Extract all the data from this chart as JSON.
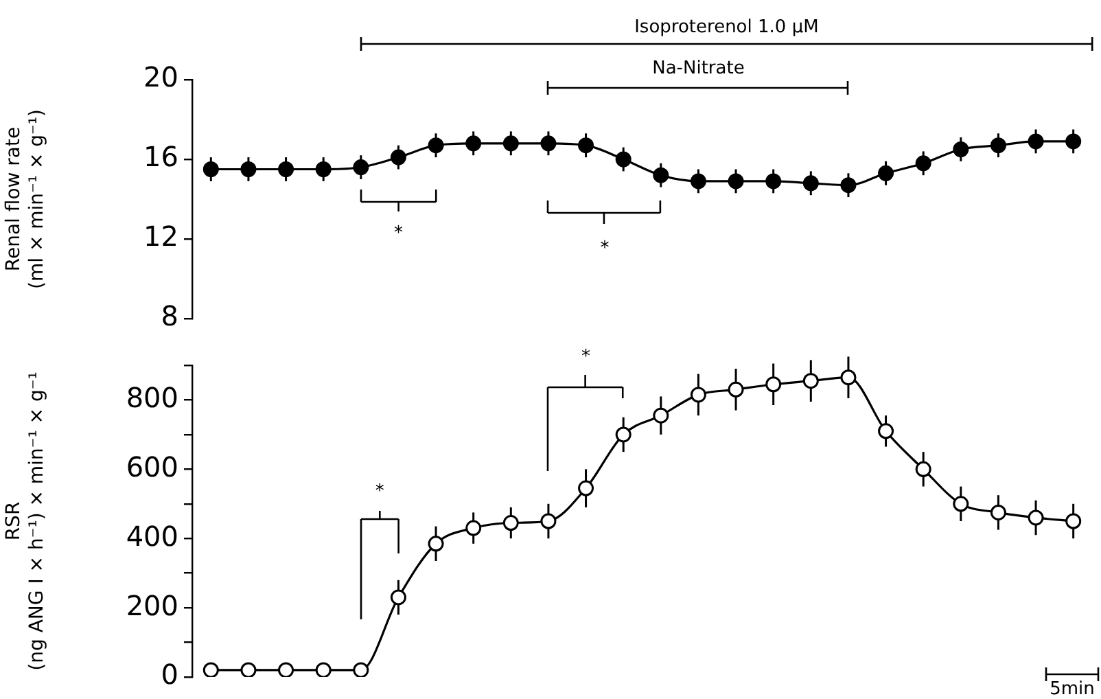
{
  "chart_data": [
    {
      "type": "line",
      "ylabel": "Renal flow rate (ml × min⁻¹ × g⁻¹)",
      "categories": [
        null,
        null,
        null,
        null,
        null,
        null,
        null,
        null,
        null,
        null,
        null,
        null,
        null,
        null,
        null,
        null,
        null,
        null,
        null,
        null,
        null,
        null,
        null,
        null
      ],
      "values": [
        15.5,
        15.5,
        15.5,
        15.5,
        15.6,
        16.1,
        16.7,
        16.8,
        16.8,
        16.8,
        16.7,
        16.0,
        15.2,
        14.9,
        14.9,
        14.9,
        14.8,
        14.7,
        15.3,
        15.8,
        16.5,
        16.7,
        16.9,
        16.9
      ],
      "errors": [
        0.6,
        0.6,
        0.6,
        0.6,
        0.6,
        0.6,
        0.6,
        0.6,
        0.6,
        0.6,
        0.6,
        0.6,
        0.6,
        0.6,
        0.6,
        0.6,
        0.6,
        0.6,
        0.6,
        0.6,
        0.6,
        0.6,
        0.6,
        0.6
      ],
      "color": "#000000",
      "marker": "circle",
      "line_style": "solid",
      "grid": false,
      "legend": false,
      "tick_labels": "y",
      "ylim": [
        8,
        20
      ],
      "yticks": [
        8,
        12,
        16,
        20
      ],
      "annotations": [
        "Isoproterenol 1.0 µM",
        "Na-Nitrate",
        "*",
        "*"
      ]
    },
    {
      "type": "line",
      "ylabel": "RSR (ng ANG I × h⁻¹) × min⁻¹ × g⁻¹",
      "categories": [
        null,
        null,
        null,
        null,
        null,
        null,
        null,
        null,
        null,
        null,
        null,
        null,
        null,
        null,
        null,
        null,
        null,
        null,
        null,
        null,
        null,
        null,
        null,
        null
      ],
      "values": [
        20,
        20,
        20,
        20,
        20,
        230,
        385,
        430,
        445,
        450,
        545,
        700,
        755,
        815,
        830,
        845,
        855,
        865,
        710,
        600,
        500,
        475,
        460,
        450
      ],
      "errors": [
        null,
        null,
        null,
        null,
        null,
        50,
        50,
        45,
        45,
        50,
        55,
        50,
        55,
        60,
        60,
        60,
        60,
        60,
        45,
        50,
        50,
        50,
        50,
        50
      ],
      "color": "#000000",
      "marker": "circle",
      "line_style": "solid",
      "grid": false,
      "legend": false,
      "tick_labels": "y",
      "ylim": [
        0,
        900
      ],
      "yticks": [
        0,
        {
          "value": 100,
          "label": null
        },
        200,
        {
          "value": 300,
          "label": null
        },
        400,
        {
          "value": 500,
          "label": null
        },
        600,
        {
          "value": 700,
          "label": null
        },
        800,
        {
          "value": 900,
          "label": null
        }
      ],
      "annotations": [
        "*",
        "*",
        "5min"
      ]
    }
  ]
}
